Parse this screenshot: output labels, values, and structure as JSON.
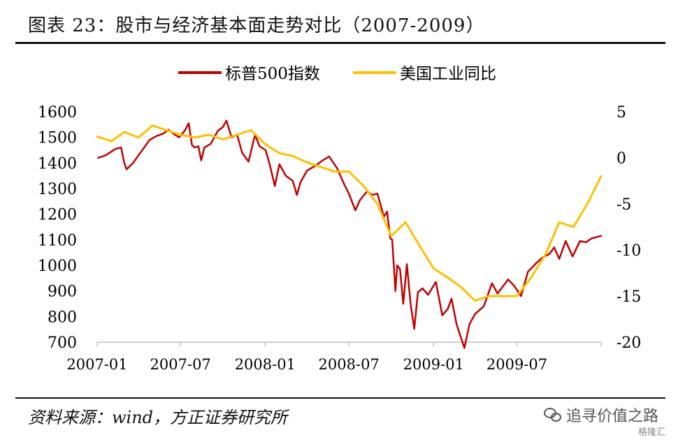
{
  "header": {
    "title": "图表 23：股市与经济基本面走势对比（2007-2009）"
  },
  "footer": {
    "source": "资料来源：wind，方正证券研究所",
    "watermark": "追寻价值之路",
    "watermark_sub": "格隆汇"
  },
  "chart_data": {
    "type": "line",
    "title": "图表 23：股市与经济基本面走势对比（2007-2009）",
    "legend_position": "top-center",
    "x_ticks": [
      "2007-01",
      "2007-07",
      "2008-01",
      "2008-07",
      "2009-01",
      "2009-07"
    ],
    "y_left": {
      "ticks": [
        1600,
        1500,
        1400,
        1300,
        1200,
        1100,
        1000,
        900,
        800,
        700
      ],
      "ylim": [
        700,
        1600
      ]
    },
    "y_right": {
      "ticks": [
        5,
        0,
        -5,
        -10,
        -15,
        -20
      ],
      "ylim": [
        -20,
        5
      ]
    },
    "colors": {
      "sp500": "#c00000",
      "indprod": "#ffc000"
    },
    "series": [
      {
        "name": "标普500指数",
        "axis": "left",
        "color": "#c00000",
        "points": [
          [
            "2007-01-03",
            1420
          ],
          [
            "2007-01-20",
            1430
          ],
          [
            "2007-02-10",
            1455
          ],
          [
            "2007-02-22",
            1460
          ],
          [
            "2007-03-01",
            1400
          ],
          [
            "2007-03-06",
            1375
          ],
          [
            "2007-03-20",
            1400
          ],
          [
            "2007-04-05",
            1440
          ],
          [
            "2007-04-25",
            1490
          ],
          [
            "2007-05-10",
            1505
          ],
          [
            "2007-05-25",
            1515
          ],
          [
            "2007-06-05",
            1530
          ],
          [
            "2007-06-15",
            1515
          ],
          [
            "2007-06-28",
            1500
          ],
          [
            "2007-07-10",
            1525
          ],
          [
            "2007-07-19",
            1555
          ],
          [
            "2007-07-26",
            1470
          ],
          [
            "2007-08-01",
            1460
          ],
          [
            "2007-08-09",
            1465
          ],
          [
            "2007-08-15",
            1410
          ],
          [
            "2007-08-22",
            1460
          ],
          [
            "2007-09-05",
            1475
          ],
          [
            "2007-09-20",
            1525
          ],
          [
            "2007-10-01",
            1540
          ],
          [
            "2007-10-09",
            1565
          ],
          [
            "2007-10-20",
            1500
          ],
          [
            "2007-11-01",
            1510
          ],
          [
            "2007-11-12",
            1440
          ],
          [
            "2007-11-26",
            1405
          ],
          [
            "2007-12-10",
            1510
          ],
          [
            "2007-12-20",
            1465
          ],
          [
            "2008-01-02",
            1450
          ],
          [
            "2008-01-10",
            1400
          ],
          [
            "2008-01-22",
            1310
          ],
          [
            "2008-02-01",
            1395
          ],
          [
            "2008-02-15",
            1350
          ],
          [
            "2008-03-01",
            1330
          ],
          [
            "2008-03-10",
            1275
          ],
          [
            "2008-03-18",
            1325
          ],
          [
            "2008-04-01",
            1370
          ],
          [
            "2008-04-20",
            1390
          ],
          [
            "2008-05-05",
            1410
          ],
          [
            "2008-05-19",
            1425
          ],
          [
            "2008-06-05",
            1380
          ],
          [
            "2008-06-20",
            1320
          ],
          [
            "2008-07-01",
            1280
          ],
          [
            "2008-07-15",
            1215
          ],
          [
            "2008-07-25",
            1255
          ],
          [
            "2008-08-10",
            1290
          ],
          [
            "2008-08-20",
            1275
          ],
          [
            "2008-09-01",
            1280
          ],
          [
            "2008-09-15",
            1190
          ],
          [
            "2008-09-22",
            1210
          ],
          [
            "2008-09-29",
            1105
          ],
          [
            "2008-10-03",
            1100
          ],
          [
            "2008-10-10",
            900
          ],
          [
            "2008-10-14",
            1000
          ],
          [
            "2008-10-20",
            985
          ],
          [
            "2008-10-27",
            850
          ],
          [
            "2008-11-04",
            1005
          ],
          [
            "2008-11-12",
            850
          ],
          [
            "2008-11-20",
            752
          ],
          [
            "2008-11-28",
            895
          ],
          [
            "2008-12-08",
            910
          ],
          [
            "2008-12-20",
            885
          ],
          [
            "2009-01-06",
            935
          ],
          [
            "2009-01-20",
            805
          ],
          [
            "2009-02-01",
            830
          ],
          [
            "2009-02-09",
            870
          ],
          [
            "2009-02-20",
            770
          ],
          [
            "2009-03-09",
            677
          ],
          [
            "2009-03-20",
            770
          ],
          [
            "2009-04-01",
            810
          ],
          [
            "2009-04-20",
            840
          ],
          [
            "2009-05-08",
            930
          ],
          [
            "2009-05-20",
            890
          ],
          [
            "2009-06-12",
            945
          ],
          [
            "2009-06-25",
            920
          ],
          [
            "2009-07-10",
            880
          ],
          [
            "2009-07-25",
            975
          ],
          [
            "2009-08-10",
            1005
          ],
          [
            "2009-08-25",
            1030
          ],
          [
            "2009-09-10",
            1045
          ],
          [
            "2009-09-20",
            1070
          ],
          [
            "2009-10-01",
            1025
          ],
          [
            "2009-10-15",
            1095
          ],
          [
            "2009-10-30",
            1035
          ],
          [
            "2009-11-15",
            1095
          ],
          [
            "2009-11-28",
            1090
          ],
          [
            "2009-12-10",
            1105
          ],
          [
            "2009-12-31",
            1115
          ]
        ]
      },
      {
        "name": "美国工业同比",
        "axis": "right",
        "color": "#ffc000",
        "points": [
          [
            "2007-01-01",
            2.3
          ],
          [
            "2007-02-01",
            1.8
          ],
          [
            "2007-03-01",
            2.8
          ],
          [
            "2007-04-01",
            2.2
          ],
          [
            "2007-05-01",
            3.5
          ],
          [
            "2007-06-01",
            3.0
          ],
          [
            "2007-07-01",
            2.5
          ],
          [
            "2007-08-01",
            2.2
          ],
          [
            "2007-09-01",
            2.5
          ],
          [
            "2007-10-01",
            2.0
          ],
          [
            "2007-11-01",
            2.5
          ],
          [
            "2007-12-01",
            3.0
          ],
          [
            "2008-01-01",
            1.5
          ],
          [
            "2008-02-01",
            0.5
          ],
          [
            "2008-03-01",
            0.2
          ],
          [
            "2008-04-01",
            -0.5
          ],
          [
            "2008-05-01",
            -1.0
          ],
          [
            "2008-06-01",
            -1.5
          ],
          [
            "2008-07-01",
            -1.5
          ],
          [
            "2008-08-01",
            -3.0
          ],
          [
            "2008-09-01",
            -5.0
          ],
          [
            "2008-10-01",
            -8.5
          ],
          [
            "2008-11-01",
            -7.0
          ],
          [
            "2008-12-01",
            -9.5
          ],
          [
            "2009-01-01",
            -12.0
          ],
          [
            "2009-02-01",
            -13.0
          ],
          [
            "2009-03-01",
            -14.0
          ],
          [
            "2009-04-01",
            -15.5
          ],
          [
            "2009-05-01",
            -15.0
          ],
          [
            "2009-06-01",
            -15.0
          ],
          [
            "2009-07-01",
            -15.0
          ],
          [
            "2009-08-01",
            -13.0
          ],
          [
            "2009-09-01",
            -10.5
          ],
          [
            "2009-10-01",
            -7.0
          ],
          [
            "2009-11-01",
            -7.5
          ],
          [
            "2009-12-01",
            -5.0
          ],
          [
            "2009-12-31",
            -2.0
          ]
        ]
      }
    ]
  }
}
